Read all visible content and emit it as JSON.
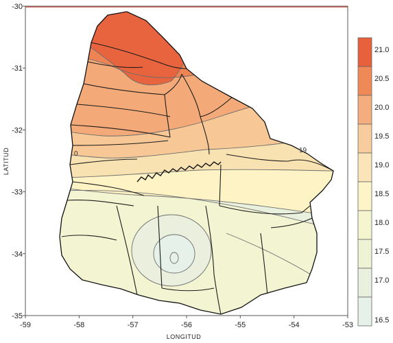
{
  "axes": {
    "xlabel": "LONGITUD",
    "ylabel": "LATITUD",
    "xlim": [
      -59,
      -53
    ],
    "ylim": [
      -35,
      -30
    ],
    "x_ticks": [
      "-59",
      "-58",
      "-57",
      "-56",
      "-55",
      "-54",
      "-53"
    ],
    "y_ticks": [
      "-30",
      "-31",
      "-32",
      "-33",
      "-34",
      "-35"
    ]
  },
  "colorbar": {
    "levels": [
      "21.0",
      "20.5",
      "20.0",
      "19.5",
      "19.0",
      "18.5",
      "18.0",
      "17.5",
      "17.0",
      "16.5"
    ],
    "colors": [
      "#e8603c",
      "#ef8a58",
      "#f4ad7c",
      "#f8cc9c",
      "#fae5b8",
      "#fdf4c8",
      "#f5f6d0",
      "#eef3d6",
      "#e9f0de",
      "#e6f1ea"
    ]
  },
  "isoline_labels": [
    "19",
    "0"
  ]
}
